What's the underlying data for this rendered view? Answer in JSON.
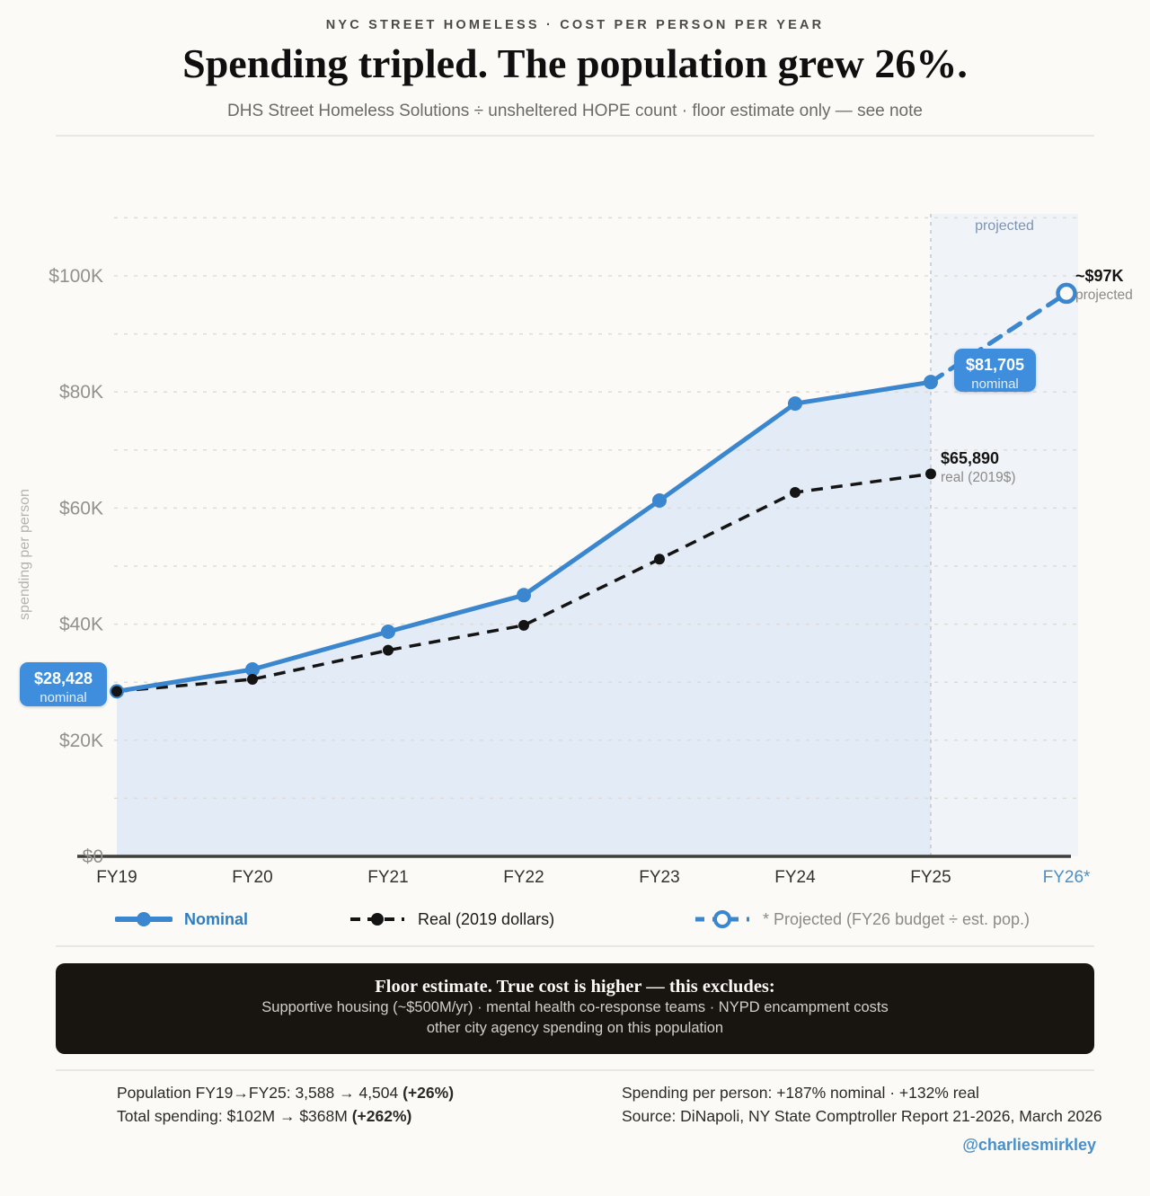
{
  "header": {
    "kicker": "NYC STREET HOMELESS · COST PER PERSON PER YEAR",
    "title": "Spending tripled. The population grew 26%.",
    "subtitle": "DHS Street Homeless Solutions ÷ unsheltered HOPE count · floor estimate only — see note"
  },
  "chart_data": {
    "type": "line",
    "title": "Spending tripled. The population grew 26%.",
    "categories": [
      "FY19",
      "FY20",
      "FY21",
      "FY22",
      "FY23",
      "FY24",
      "FY25",
      "FY26*"
    ],
    "xlabel": "",
    "ylabel": "spending per person",
    "ylim": [
      0,
      110000
    ],
    "grid_step": 10000,
    "grid": "dashed-horizontal",
    "ytick_values": [
      0,
      20000,
      40000,
      60000,
      80000,
      100000
    ],
    "ytick_labels": [
      "$0",
      "$20K",
      "$40K",
      "$60K",
      "$80K",
      "$100K"
    ],
    "legend_position": "bottom",
    "series": [
      {
        "name": "Nominal",
        "style": "solid",
        "color": "#3a86cf",
        "values": [
          28428,
          32200,
          38700,
          45000,
          61300,
          78000,
          81705,
          null
        ]
      },
      {
        "name": "Real (2019 dollars)",
        "style": "dashed",
        "color": "#141414",
        "values": [
          28428,
          30500,
          35500,
          39800,
          51200,
          62700,
          65890,
          null
        ]
      },
      {
        "name": "* Projected (FY26 budget ÷ est. pop.)",
        "style": "dashed-open-marker",
        "color": "#3a86cf",
        "values": [
          null,
          null,
          null,
          null,
          null,
          null,
          81705,
          97000
        ]
      }
    ],
    "projected_region": {
      "from_category": "FY25",
      "to_category": "FY26*",
      "label": "projected"
    },
    "annotations": {
      "fy19_badge": {
        "value": "$28,428",
        "label": "nominal"
      },
      "fy25_badge": {
        "value": "$81,705",
        "label": "nominal"
      },
      "real_end": {
        "value": "$65,890",
        "label": "real (2019$)"
      },
      "fy26_point": {
        "value": "~$97K",
        "label": "projected"
      }
    },
    "legend": [
      "Nominal",
      "Real (2019 dollars)",
      "* Projected (FY26 budget ÷ est. pop.)"
    ]
  },
  "note_box": {
    "heading": "Floor estimate. True cost is higher — this excludes:",
    "line1": "Supportive housing (~$500M/yr) · mental health co-response teams · NYPD encampment costs",
    "line2": "other city agency spending on this population"
  },
  "footer": {
    "population_prefix": "Population FY19→FY25: 3,588 → 4,504 ",
    "population_bold": "(+26%)",
    "spending_prefix": "Total spending: $102M → $368M ",
    "spending_bold": "(+262%)",
    "per_person": "Spending per person: +187% nominal · +132% real",
    "source": "Source: DiNapoli, NY State Comptroller Report 21-2026, March 2026",
    "handle": "@charliesmirkley"
  },
  "colors": {
    "accent_blue": "#3a86cf",
    "legend_blue_text": "#2f7dc1",
    "badge_blue": "#3f8edd",
    "area_fill": "#e3ebf6",
    "projected_band": "#f0f3f8",
    "background": "#fbfaf6",
    "real_black": "#141414",
    "fy26_tick_blue": "#4a90c9"
  }
}
